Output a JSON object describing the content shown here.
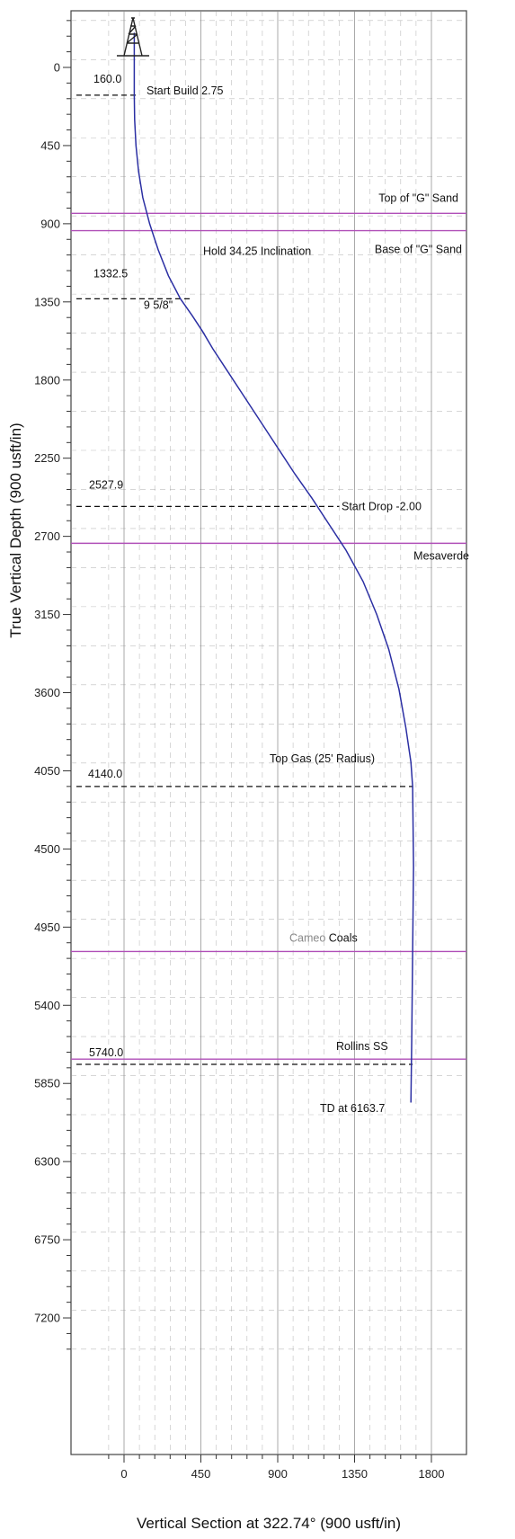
{
  "chart_data": {
    "type": "line",
    "title": "",
    "xlabel": "Vertical Section at 322.74° (900 usft/in)",
    "ylabel": "True Vertical Depth (900 usft/in)",
    "xlim": [
      -150,
      1900
    ],
    "ylim": [
      -400,
      7450
    ],
    "y_inverted": true,
    "grid": true,
    "x_ticks": [
      0,
      450,
      900,
      1350,
      1800
    ],
    "x_tick_labels": [
      "0",
      "450",
      "900",
      "1350",
      "1800"
    ],
    "y_ticks": [
      0,
      450,
      900,
      1350,
      1800,
      2250,
      2700,
      3150,
      3600,
      4050,
      4500,
      4950,
      5400,
      5850,
      6300,
      6750,
      7200
    ],
    "y_tick_labels": [
      "0",
      "450",
      "900",
      "1350",
      "1800",
      "2250",
      "2700",
      "3150",
      "3600",
      "4050",
      "4500",
      "4950",
      "5400",
      "5850",
      "6300",
      "6750",
      "7200"
    ],
    "series": [
      {
        "color": "#2b2fa3",
        "x": [
          60,
          60,
          62,
          70,
          85,
          110,
          150,
          200,
          260,
          330,
          400,
          460,
          520,
          600,
          700,
          800,
          900,
          1000,
          1100,
          1200,
          1300,
          1400,
          1480,
          1550,
          1610,
          1650,
          1680,
          1690,
          1695,
          1690,
          1685,
          1680
        ],
        "y": [
          -200,
          160,
          300,
          450,
          600,
          750,
          900,
          1050,
          1200,
          1332,
          1430,
          1520,
          1620,
          1740,
          1890,
          2040,
          2190,
          2340,
          2480,
          2630,
          2780,
          2960,
          3150,
          3350,
          3580,
          3800,
          4000,
          4140,
          4600,
          5100,
          5600,
          5960
        ]
      }
    ],
    "horizontal_markers": [
      {
        "depth_label": "160.0",
        "y": 160,
        "x_to": 80,
        "text": "Start Build 2.75"
      },
      {
        "depth_label": "1332.5",
        "y": 1332,
        "x_to": 400,
        "text": "Hold 34.25 Inclination"
      },
      {
        "depth_label": "2527.9",
        "y": 2528,
        "x_to": 1260,
        "text": "Start Drop -2.00"
      },
      {
        "depth_label": "4140.0",
        "y": 4140,
        "x_to": 1690,
        "text": "Top Gas (25' Radius)"
      },
      {
        "depth_label": "5740.0",
        "y": 5740,
        "x_to": 1690,
        "text": "TD at 6163.7"
      }
    ],
    "formation_tops": [
      {
        "name": "Top of \"G\" Sand",
        "y": 840
      },
      {
        "name": "Base of \"G\" Sand",
        "y": 940
      },
      {
        "name": "Mesaverde",
        "y": 2740
      },
      {
        "name": "Cameo",
        "name2": "Coals",
        "y": 5090
      },
      {
        "name": "Rollins SS",
        "y": 5710
      }
    ],
    "annotations": [
      {
        "text": "9 5/8\"",
        "x": 510,
        "y": 1370
      }
    ],
    "colors": {
      "trajectory": "#2b2fa3",
      "formation": "#b04fb8",
      "marker": "#111111",
      "grid": "#8a8a8a"
    }
  }
}
